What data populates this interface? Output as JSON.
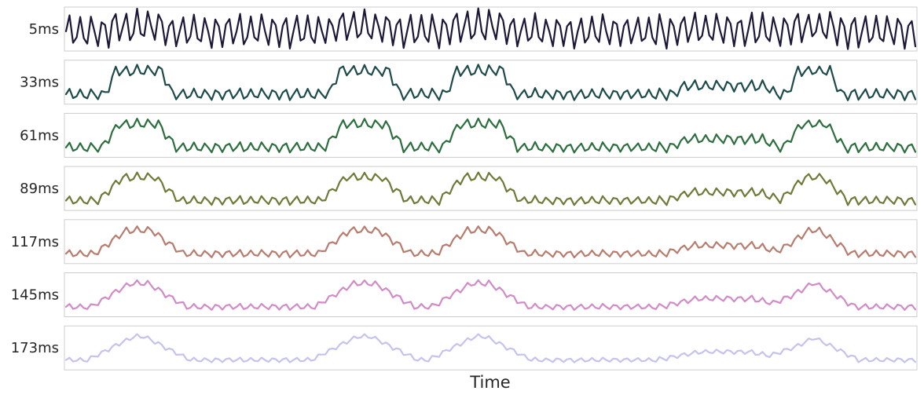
{
  "chart_data": {
    "type": "line",
    "xlabel": "Time",
    "ylabel": "",
    "grid": false,
    "legend": "none",
    "description_of_layout": "",
    "series": [
      {
        "name": "5ms",
        "color": "#1b1838",
        "window": 5
      },
      {
        "name": "33ms",
        "color": "#1d4a4a",
        "window": 33
      },
      {
        "name": "61ms",
        "color": "#2c6e3e",
        "window": 61
      },
      {
        "name": "89ms",
        "color": "#6f7a38",
        "window": 89
      },
      {
        "name": "117ms",
        "color": "#b87c6e",
        "window": 117
      },
      {
        "name": "145ms",
        "color": "#d18bc6",
        "window": 145
      },
      {
        "name": "173ms",
        "color": "#c5c3ee",
        "window": 173
      }
    ],
    "samples": 240,
    "high_segments": [
      [
        0.053,
        0.118
      ],
      [
        0.315,
        0.385
      ],
      [
        0.455,
        0.52
      ],
      [
        0.855,
        0.905
      ]
    ],
    "medium_segments": [
      [
        0.72,
        0.83
      ]
    ],
    "oscillation_period_samples": 3.2
  }
}
